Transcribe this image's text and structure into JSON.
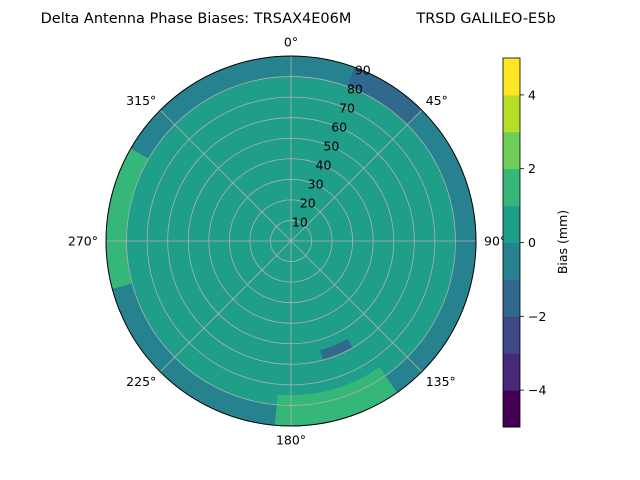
{
  "chart_data": {
    "type": "polar contour heatmap",
    "title": "Delta Antenna Phase Biases: TRSAX4E06M",
    "subtitle": "TRSD GALILEO-E5b",
    "angular_ticks": [
      "0°",
      "45°",
      "90°",
      "135°",
      "180°",
      "225°",
      "270°",
      "315°"
    ],
    "angular_tick_values_deg": [
      0,
      45,
      90,
      135,
      180,
      225,
      270,
      315
    ],
    "radial_ticks": [
      "10",
      "20",
      "30",
      "40",
      "50",
      "60",
      "70",
      "80",
      "90"
    ],
    "radial_tick_values": [
      10,
      20,
      30,
      40,
      50,
      60,
      70,
      80,
      90
    ],
    "radial_range": [
      0,
      90
    ],
    "grid": true,
    "colorbar": {
      "label": "Bias (mm)",
      "range": [
        -5,
        5
      ],
      "levels": [
        -5,
        -4,
        -3,
        -2,
        -1,
        0,
        1,
        2,
        3,
        4,
        5
      ],
      "tick_values": [
        4,
        2,
        0,
        -2,
        -4
      ],
      "tick_labels": [
        "4",
        "2",
        "0",
        "−2",
        "−4"
      ],
      "colors": [
        "#440154",
        "#482878",
        "#3e4989",
        "#31688e",
        "#26828e",
        "#1f9e89",
        "#35b779",
        "#6ece58",
        "#b5de2b",
        "#fde725"
      ]
    },
    "background_level_color": "#26828e",
    "regions": [
      {
        "level": "0 to 1 mm",
        "color": "#1f9e89",
        "azimuth_range_deg": [
          0,
          360
        ],
        "elevation_range": [
          0,
          80
        ]
      },
      {
        "level": "1 to 2 mm",
        "color": "#35b779",
        "azimuth_range_deg": [
          255,
          300
        ],
        "elevation_range": [
          80,
          90
        ]
      },
      {
        "level": "1 to 2 mm",
        "color": "#35b779",
        "azimuth_range_deg": [
          145,
          185
        ],
        "elevation_range": [
          75,
          90
        ]
      },
      {
        "level": "-2 to -1 mm",
        "color": "#31688e",
        "azimuth_range_deg": [
          20,
          45
        ],
        "elevation_range": [
          80,
          90
        ]
      },
      {
        "level": "-2 to -1 mm",
        "color": "#31688e",
        "azimuth_range_deg": [
          150,
          165
        ],
        "elevation_range": [
          55,
          60
        ]
      }
    ]
  }
}
